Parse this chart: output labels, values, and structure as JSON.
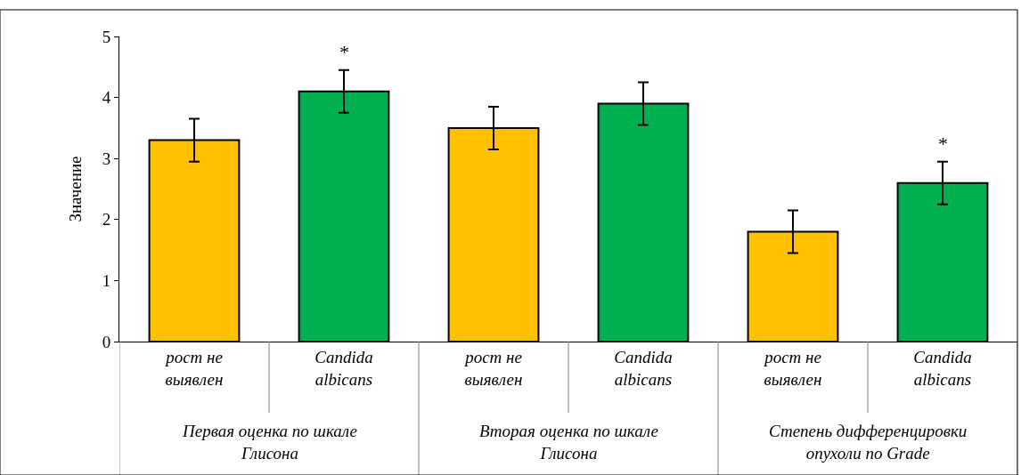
{
  "chart_data": {
    "type": "bar",
    "ylabel": "Значение",
    "categories": [
      "рост не выявлен",
      "Candida albicans",
      "рост не выявлен",
      "Candida albicans",
      "рост не выявлен",
      "Candida albicans"
    ],
    "values": [
      3.3,
      4.1,
      3.5,
      3.9,
      1.8,
      2.6
    ],
    "colors": [
      "#ffc000",
      "#00b050",
      "#ffc000",
      "#00b050",
      "#ffc000",
      "#00b050"
    ],
    "errors": [
      0.35,
      0.35,
      0.35,
      0.35,
      0.35,
      0.35
    ],
    "value_labels": [
      null,
      "*",
      null,
      null,
      null,
      "*"
    ],
    "annotations": [
      "Первая оценка по шкале Глисона",
      "Вторая оценка по шкале Глисона",
      "Степень дифференцировки опухоли по Grade"
    ],
    "ylim": [
      0,
      5
    ],
    "yticks": [
      0,
      1,
      2,
      3,
      4,
      5
    ]
  }
}
